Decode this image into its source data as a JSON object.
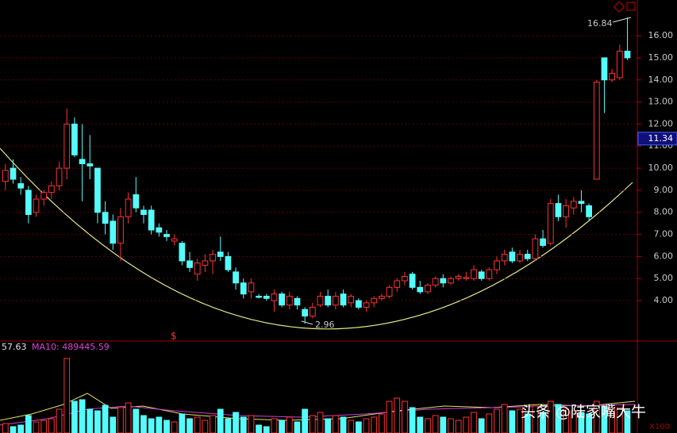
{
  "chart_data": {
    "type": "candlestick",
    "open": [
      9.4,
      10.0,
      9.3,
      9.0,
      8.0,
      8.6,
      8.9,
      9.2,
      10.0,
      12.0,
      10.4,
      10.2,
      10.0,
      8.0,
      7.6,
      6.6,
      7.8,
      8.8,
      8.1,
      8.1,
      7.3,
      7.0,
      6.7,
      6.6,
      5.8,
      5.2,
      5.6,
      5.8,
      6.2,
      6.0,
      5.3,
      4.8,
      4.4,
      4.2,
      4.2,
      4.0,
      4.3,
      3.8,
      4.1,
      3.6,
      3.3,
      3.8,
      4.2,
      3.8,
      4.3,
      3.9,
      4.0,
      3.7,
      3.9,
      4.1,
      4.2,
      4.6,
      4.9,
      5.2,
      4.6,
      4.4,
      4.7,
      5.0,
      4.8,
      5.0,
      5.0,
      5.0,
      5.3,
      5.0,
      5.4,
      5.8,
      6.2,
      5.8,
      6.1,
      5.9,
      6.8,
      6.6,
      8.4,
      7.8,
      8.2,
      8.5,
      8.3,
      9.5,
      15.0,
      14.0,
      14.1,
      15.3
    ],
    "high": [
      10.2,
      10.4,
      9.6,
      9.2,
      8.8,
      9.0,
      9.4,
      10.3,
      12.7,
      12.3,
      12.0,
      11.5,
      10.0,
      8.5,
      7.9,
      8.2,
      8.9,
      9.6,
      8.3,
      8.3,
      7.5,
      7.2,
      7.0,
      6.7,
      6.2,
      5.9,
      6.1,
      6.3,
      6.9,
      6.2,
      5.5,
      5.0,
      5.0,
      4.3,
      4.3,
      4.5,
      4.4,
      4.4,
      4.2,
      3.7,
      3.9,
      4.4,
      4.5,
      4.4,
      4.5,
      4.3,
      4.1,
      4.0,
      4.2,
      4.3,
      4.7,
      5.0,
      5.3,
      5.3,
      4.9,
      4.8,
      5.1,
      5.2,
      5.1,
      5.2,
      5.3,
      5.6,
      5.4,
      5.5,
      6.0,
      6.3,
      6.4,
      6.3,
      6.3,
      7.0,
      7.2,
      8.6,
      8.8,
      8.6,
      8.7,
      9.0,
      8.4,
      14.0,
      15.0,
      14.5,
      15.6,
      16.84
    ],
    "low": [
      9.0,
      9.3,
      8.8,
      7.5,
      7.8,
      8.3,
      8.6,
      9.0,
      9.5,
      10.5,
      8.5,
      9.5,
      7.5,
      7.0,
      6.3,
      5.8,
      7.5,
      8.0,
      7.5,
      7.0,
      6.9,
      6.7,
      6.5,
      5.6,
      5.3,
      4.9,
      5.3,
      5.2,
      5.8,
      5.3,
      4.5,
      4.1,
      4.1,
      4.1,
      4.0,
      3.5,
      3.7,
      3.6,
      3.6,
      2.96,
      3.2,
      3.7,
      3.7,
      3.6,
      3.7,
      3.7,
      3.6,
      3.5,
      3.7,
      4.0,
      4.1,
      4.4,
      4.7,
      4.5,
      4.3,
      4.3,
      4.6,
      4.6,
      4.7,
      4.9,
      4.9,
      4.9,
      4.9,
      4.9,
      5.2,
      5.6,
      5.7,
      5.7,
      5.8,
      5.8,
      6.4,
      6.5,
      7.6,
      7.3,
      7.9,
      8.0,
      7.6,
      9.5,
      12.5,
      13.9,
      14.0,
      14.9
    ],
    "close": [
      9.9,
      9.5,
      9.1,
      7.9,
      8.6,
      8.9,
      9.2,
      10.0,
      12.0,
      10.6,
      10.2,
      10.1,
      8.0,
      7.5,
      6.6,
      7.8,
      8.6,
      8.2,
      7.9,
      7.2,
      7.1,
      6.9,
      6.8,
      5.8,
      5.5,
      5.7,
      5.8,
      6.1,
      6.0,
      5.4,
      4.8,
      4.3,
      4.8,
      4.15,
      4.1,
      4.3,
      3.8,
      4.2,
      3.8,
      3.3,
      3.7,
      4.2,
      3.8,
      4.2,
      3.8,
      4.2,
      3.7,
      3.9,
      4.1,
      4.2,
      4.6,
      4.9,
      5.1,
      4.6,
      4.4,
      4.7,
      5.0,
      4.8,
      5.0,
      5.1,
      5.05,
      5.4,
      5.0,
      5.4,
      5.8,
      6.1,
      5.8,
      6.1,
      5.9,
      6.8,
      6.5,
      8.4,
      7.8,
      8.3,
      8.5,
      8.4,
      7.8,
      13.9,
      14.0,
      14.3,
      15.3,
      15.0
    ],
    "volume": [
      12,
      8,
      10,
      22,
      14,
      16,
      18,
      30,
      94,
      40,
      42,
      30,
      28,
      35,
      20,
      32,
      38,
      30,
      22,
      18,
      20,
      16,
      14,
      24,
      18,
      20,
      16,
      22,
      30,
      18,
      26,
      20,
      22,
      10,
      8,
      18,
      16,
      20,
      14,
      30,
      22,
      26,
      18,
      22,
      20,
      16,
      14,
      18,
      20,
      24,
      40,
      44,
      40,
      32,
      20,
      18,
      22,
      20,
      18,
      16,
      20,
      26,
      18,
      24,
      30,
      36,
      28,
      30,
      24,
      34,
      26,
      40,
      36,
      30,
      28,
      26,
      24,
      40,
      34,
      30,
      32,
      28
    ],
    "volume_ylim": [
      0,
      116
    ],
    "up_color": "#ff3232",
    "down_color": "#54fcfc",
    "ylim": [
      2.17,
      17.62
    ],
    "yticks": [
      {
        "value": 4,
        "label": "4.00"
      },
      {
        "value": 5,
        "label": "5.00"
      },
      {
        "value": 6,
        "label": "6.00"
      },
      {
        "value": 7,
        "label": "7.00"
      },
      {
        "value": 8,
        "label": "8.00"
      },
      {
        "value": 9,
        "label": "9.00"
      },
      {
        "value": 10,
        "label": "10.00"
      },
      {
        "value": 11,
        "label": "11.00"
      },
      {
        "value": 12,
        "label": "12.00"
      },
      {
        "value": 13,
        "label": "13.00"
      },
      {
        "value": 14,
        "label": "14.00"
      },
      {
        "value": 15,
        "label": "15.00"
      },
      {
        "value": 16,
        "label": "16.00"
      }
    ],
    "grid": true,
    "max_label": 16.84,
    "min_label": 2.96,
    "current_price": 11.34,
    "volume_value": 57.63,
    "volume_ma_label": "MA10: 489445.59",
    "volume_unit": "X100",
    "signal_marker": "$",
    "watermark": "头条 @陆家嘴大牛"
  }
}
